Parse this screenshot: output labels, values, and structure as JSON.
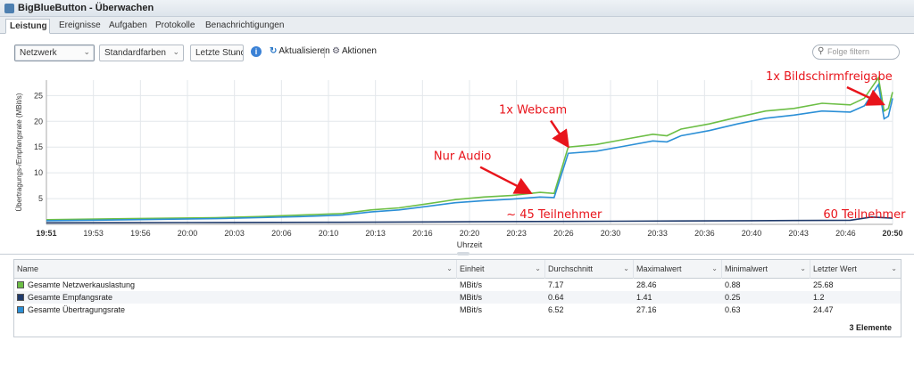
{
  "window": {
    "title": "BigBlueButton - Überwachen"
  },
  "tabs": [
    {
      "label": "Leistung",
      "active": true
    },
    {
      "label": "Ereignisse",
      "active": false
    },
    {
      "label": "Aufgaben",
      "active": false
    },
    {
      "label": "Protokolle",
      "active": false
    },
    {
      "label": "Benachrichtigungen",
      "active": false
    }
  ],
  "toolbar": {
    "metric_select": "Netzwerk",
    "color_select": "Standardfarben",
    "time_select": "Letzte Stunde",
    "refresh_label": "Aktualisieren",
    "actions_label": "Aktionen",
    "filter_placeholder": "Folge filtern"
  },
  "chart_data": {
    "type": "line",
    "ylabel": "Übertragungs-/Empfangsrate (MBit/s)",
    "xlabel": "Uhrzeit",
    "x_ticks": [
      "19:51",
      "19:53",
      "19:56",
      "20:00",
      "20:03",
      "20:06",
      "20:10",
      "20:13",
      "20:16",
      "20:20",
      "20:23",
      "20:26",
      "20:30",
      "20:33",
      "20:36",
      "20:40",
      "20:43",
      "20:46",
      "20:50"
    ],
    "y_ticks": [
      5,
      10,
      15,
      20,
      25
    ],
    "ylim": [
      0,
      28
    ],
    "grid": true,
    "series": [
      {
        "name": "Gesamte Netzwerkauslastung",
        "color": "#6cbe45",
        "x": [
          0,
          3,
          6,
          9,
          12,
          15,
          18,
          21,
          23,
          25,
          27,
          29,
          31,
          33,
          35,
          36,
          37,
          39,
          41,
          43,
          44,
          45,
          47,
          49,
          51,
          53,
          55,
          57,
          58,
          59,
          59.4,
          59.7,
          60
        ],
        "y": [
          0.9,
          1.0,
          1.1,
          1.2,
          1.3,
          1.5,
          1.8,
          2.1,
          2.8,
          3.2,
          4.0,
          4.8,
          5.3,
          5.6,
          6.2,
          6.0,
          15.0,
          15.5,
          16.5,
          17.5,
          17.2,
          18.5,
          19.5,
          20.8,
          22.0,
          22.5,
          23.5,
          23.2,
          24.5,
          28.46,
          22.0,
          22.5,
          25.68
        ]
      },
      {
        "name": "Gesamte Empfangsrate",
        "color": "#1f3a6b",
        "x": [
          0,
          10,
          20,
          30,
          40,
          50,
          57,
          58.5,
          60
        ],
        "y": [
          0.3,
          0.35,
          0.4,
          0.5,
          0.6,
          0.7,
          0.8,
          1.41,
          1.2
        ]
      },
      {
        "name": "Gesamte Übertragungsrate",
        "color": "#2b8fd6",
        "x": [
          0,
          3,
          6,
          9,
          12,
          15,
          18,
          21,
          23,
          25,
          27,
          29,
          31,
          33,
          35,
          36,
          37,
          39,
          41,
          43,
          44,
          45,
          47,
          49,
          51,
          53,
          55,
          57,
          58,
          59,
          59.4,
          59.7,
          60
        ],
        "y": [
          0.7,
          0.8,
          0.9,
          1.0,
          1.1,
          1.3,
          1.5,
          1.8,
          2.4,
          2.8,
          3.5,
          4.2,
          4.6,
          4.9,
          5.3,
          5.2,
          13.8,
          14.2,
          15.2,
          16.2,
          16.0,
          17.2,
          18.2,
          19.5,
          20.6,
          21.2,
          22.0,
          21.8,
          23.0,
          27.16,
          20.5,
          21.0,
          24.47
        ]
      }
    ],
    "annotations": [
      {
        "text": "1x Bildschirmfreigabe",
        "x": 55.5,
        "y": 28.0,
        "arrow_to": [
          59.2,
          23.5
        ]
      },
      {
        "text": "1x Webcam",
        "x": 34.5,
        "y": 21.5,
        "arrow_to": [
          36.9,
          15.5
        ]
      },
      {
        "text": "Nur Audio",
        "x": 29.5,
        "y": 12.5,
        "arrow_to": [
          34.2,
          6.3
        ]
      },
      {
        "text": "~ 45 Teilnehmer",
        "x": 36,
        "y": 1.2
      },
      {
        "text": "60 Teilnehmer",
        "x": 58,
        "y": 1.2
      }
    ]
  },
  "table": {
    "columns": [
      "Name",
      "Einheit",
      "Durchschnitt",
      "Maximalwert",
      "Minimalwert",
      "Letzter Wert"
    ],
    "rows": [
      {
        "name": "Gesamte Netzwerkauslastung",
        "color": "#6cbe45",
        "unit": "MBit/s",
        "avg": "7.17",
        "max": "28.46",
        "min": "0.88",
        "last": "25.68"
      },
      {
        "name": "Gesamte Empfangsrate",
        "color": "#1f3a6b",
        "unit": "MBit/s",
        "avg": "0.64",
        "max": "1.41",
        "min": "0.25",
        "last": "1.2"
      },
      {
        "name": "Gesamte Übertragungsrate",
        "color": "#2b8fd6",
        "unit": "MBit/s",
        "avg": "6.52",
        "max": "27.16",
        "min": "0.63",
        "last": "24.47"
      }
    ],
    "count_label": "3 Elemente"
  }
}
